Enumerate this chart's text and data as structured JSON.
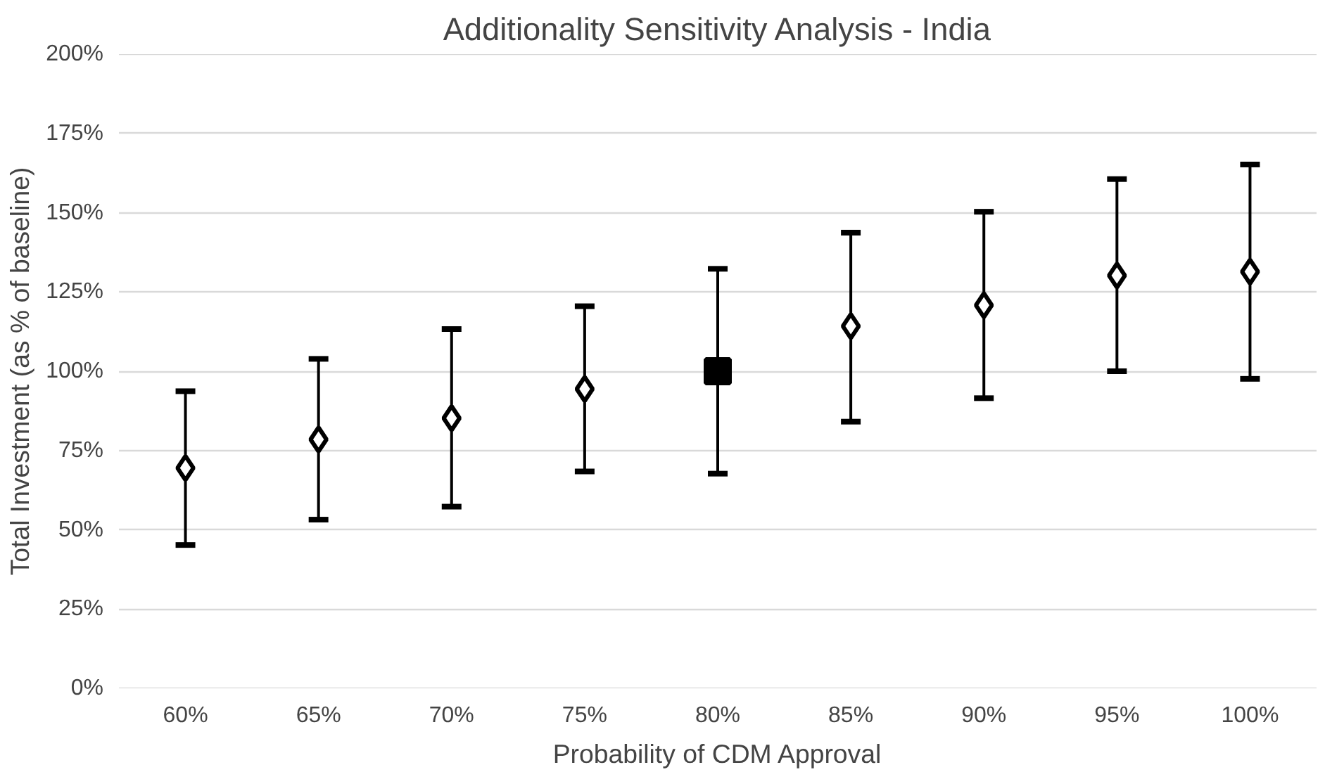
{
  "chart_data": {
    "type": "scatter",
    "title": "Additionality Sensitivity Analysis - India",
    "xlabel": "Probability of CDM Approval",
    "ylabel": "Total Investment (as % of baseline)",
    "categories": [
      "60%",
      "65%",
      "70%",
      "75%",
      "80%",
      "85%",
      "90%",
      "95%",
      "100%"
    ],
    "series": [
      {
        "color": "#000000",
        "marker": "diamond",
        "values": [
          69.5,
          78.5,
          85.2,
          94.4,
          null,
          114.2,
          120.8,
          130.2,
          131.4
        ],
        "errors": [
          [
            45.2,
            93.7
          ],
          [
            53.2,
            103.9
          ],
          [
            57.3,
            113.3
          ],
          [
            68.4,
            120.5
          ],
          null,
          [
            84.1,
            143.7
          ],
          [
            91.5,
            150.3
          ],
          [
            100,
            160.6
          ],
          [
            97.6,
            165.2
          ]
        ]
      },
      {
        "color": "#000000",
        "marker": "square",
        "values": [
          null,
          null,
          null,
          null,
          100,
          null,
          null,
          null,
          null
        ],
        "errors": [
          null,
          null,
          null,
          null,
          [
            67.7,
            132.3
          ],
          null,
          null,
          null,
          null
        ]
      }
    ],
    "ylim": [
      0,
      200
    ],
    "yticks": [
      {
        "value": 0,
        "label": "0%"
      },
      {
        "value": 25,
        "label": "25%"
      },
      {
        "value": 50,
        "label": "50%"
      },
      {
        "value": 75,
        "label": "75%"
      },
      {
        "value": 100,
        "label": "100%"
      },
      {
        "value": 125,
        "label": "125%"
      },
      {
        "value": 150,
        "label": "150%"
      },
      {
        "value": 175,
        "label": "175%"
      },
      {
        "value": 200,
        "label": "200%"
      }
    ],
    "grid": "y"
  }
}
